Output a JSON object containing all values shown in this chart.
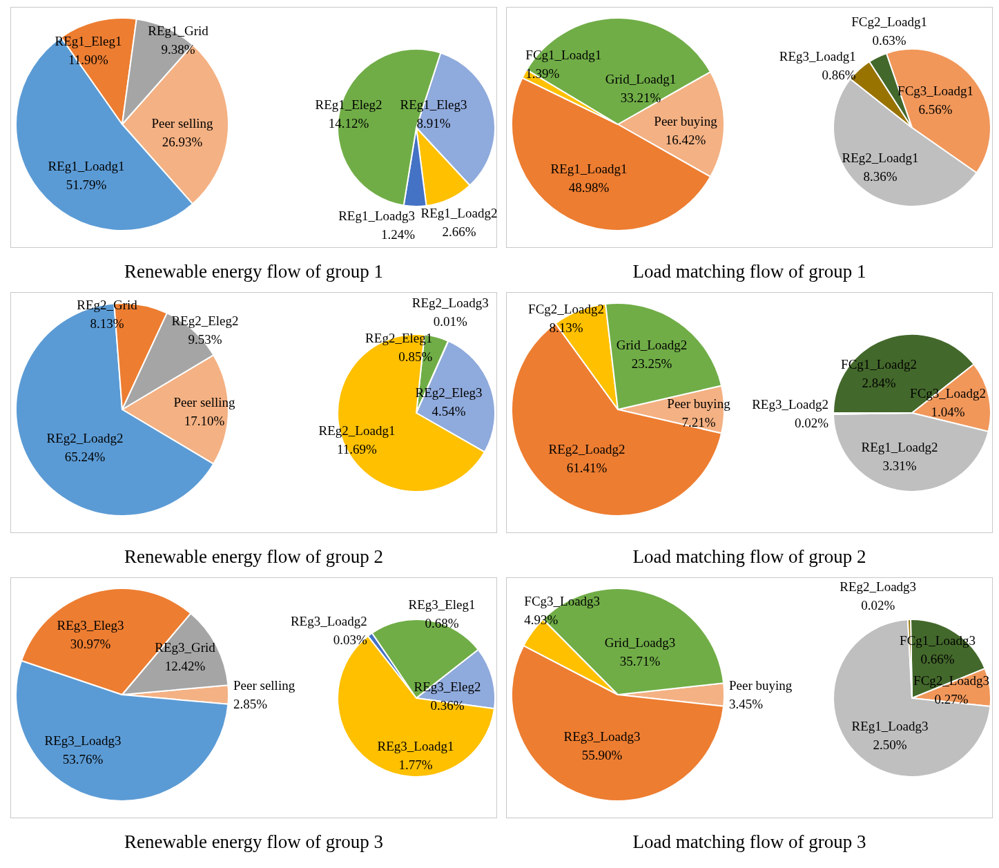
{
  "chart_data": [
    {
      "type": "pie",
      "title": "Renewable energy flow of group 1",
      "categories": [
        "Peer selling",
        "REg1_Loadg1",
        "REg1_Eleg1",
        "REg1_Grid"
      ],
      "values": [
        26.93,
        51.79,
        11.9,
        9.38
      ],
      "colors": [
        "#f4b183",
        "#5b9bd5",
        "#ed7d31",
        "#a5a5a5"
      ],
      "value_labels": [
        "26.93%",
        "51.79%",
        "11.90%",
        "9.38%"
      ]
    },
    {
      "type": "pie",
      "categories": [
        "REg1_Eleg3",
        "REg1_Loadg2",
        "REg1_Loadg3",
        "REg1_Eleg2"
      ],
      "values": [
        8.91,
        2.66,
        1.24,
        14.12
      ],
      "colors": [
        "#8faadc",
        "#ffc000",
        "#4472c4",
        "#70ad47"
      ],
      "value_labels": [
        "8.91%",
        "2.66%",
        "1.24%",
        "14.12%"
      ]
    },
    {
      "type": "pie",
      "title": "Load matching flow of group 1",
      "categories": [
        "Peer buying",
        "REg1_Loadg1",
        "FCg1_Loadg1",
        "Grid_Loadg1"
      ],
      "values": [
        16.42,
        48.98,
        1.39,
        33.21
      ],
      "colors": [
        "#f4b183",
        "#ed7d31",
        "#ffc000",
        "#70ad47"
      ],
      "value_labels": [
        "16.42%",
        "48.98%",
        "1.39%",
        "33.21%"
      ]
    },
    {
      "type": "pie",
      "categories": [
        "FCg3_Loadg1",
        "REg2_Loadg1",
        "REg3_Loadg1",
        "FCg2_Loadg1"
      ],
      "values": [
        6.56,
        8.36,
        0.86,
        0.63
      ],
      "colors": [
        "#f1975a",
        "#bfbfbf",
        "#997300",
        "#43682b"
      ],
      "value_labels": [
        "6.56%",
        "8.36%",
        "0.86%",
        "0.63%"
      ]
    },
    {
      "type": "pie",
      "title": "Renewable energy flow of group 2",
      "categories": [
        "Peer selling",
        "REg2_Loadg2",
        "REg2_Grid",
        "REg2_Eleg2"
      ],
      "values": [
        17.1,
        65.24,
        8.13,
        9.53
      ],
      "colors": [
        "#f4b183",
        "#5b9bd5",
        "#ed7d31",
        "#a5a5a5"
      ],
      "value_labels": [
        "17.10%",
        "65.24%",
        "8.13%",
        "9.53%"
      ]
    },
    {
      "type": "pie",
      "categories": [
        "REg2_Eleg1",
        "REg2_Loadg3",
        "REg2_Eleg3",
        "REg2_Loadg1"
      ],
      "values": [
        0.85,
        0.01,
        4.54,
        11.69
      ],
      "colors": [
        "#70ad47",
        "#4472c4",
        "#8faadc",
        "#ffc000"
      ],
      "value_labels": [
        "0.85%",
        "0.01%",
        "4.54%",
        "11.69%"
      ]
    },
    {
      "type": "pie",
      "title": "Load matching flow of group 2",
      "categories": [
        "Peer buying",
        "REg2_Loadg2",
        "FCg2_Loadg2",
        "Grid_Loadg2"
      ],
      "values": [
        7.21,
        61.41,
        8.13,
        23.25
      ],
      "colors": [
        "#f4b183",
        "#ed7d31",
        "#ffc000",
        "#70ad47"
      ],
      "value_labels": [
        "7.21%",
        "61.41%",
        "8.13%",
        "23.25%"
      ]
    },
    {
      "type": "pie",
      "categories": [
        "FCg1_Loadg2",
        "FCg3_Loadg2",
        "REg1_Loadg2",
        "REg3_Loadg2"
      ],
      "values": [
        2.84,
        1.04,
        3.31,
        0.02
      ],
      "colors": [
        "#43682b",
        "#f1975a",
        "#bfbfbf",
        "#997300"
      ],
      "value_labels": [
        "2.84%",
        "1.04%",
        "3.31%",
        "0.02%"
      ]
    },
    {
      "type": "pie",
      "title": "Renewable energy flow of group 3",
      "categories": [
        "Peer selling",
        "REg3_Loadg3",
        "REg3_Eleg3",
        "REg3_Grid"
      ],
      "values": [
        2.85,
        53.76,
        30.97,
        12.42
      ],
      "colors": [
        "#f4b183",
        "#5b9bd5",
        "#ed7d31",
        "#a5a5a5"
      ],
      "value_labels": [
        "2.85%",
        "53.76%",
        "30.97%",
        "12.42%"
      ]
    },
    {
      "type": "pie",
      "categories": [
        "REg3_Loadg2",
        "REg3_Eleg1",
        "REg3_Eleg2",
        "REg3_Loadg1"
      ],
      "values": [
        0.03,
        0.68,
        0.36,
        1.77
      ],
      "colors": [
        "#4472c4",
        "#70ad47",
        "#8faadc",
        "#ffc000"
      ],
      "value_labels": [
        "0.03%",
        "0.68%",
        "0.36%",
        "1.77%"
      ]
    },
    {
      "type": "pie",
      "title": "Load matching flow of group 3",
      "categories": [
        "Peer buying",
        "REg3_Loadg3",
        "FCg3_Loadg3",
        "Grid_Loadg3"
      ],
      "values": [
        3.45,
        55.9,
        4.93,
        35.71
      ],
      "colors": [
        "#f4b183",
        "#ed7d31",
        "#ffc000",
        "#70ad47"
      ],
      "value_labels": [
        "3.45%",
        "55.90%",
        "4.93%",
        "35.71%"
      ]
    },
    {
      "type": "pie",
      "categories": [
        "FCg1_Loadg3",
        "FCg2_Loadg3",
        "REg1_Loadg3",
        "REg2_Loadg3"
      ],
      "values": [
        0.66,
        0.27,
        2.5,
        0.02
      ],
      "colors": [
        "#43682b",
        "#f1975a",
        "#bfbfbf",
        "#997300"
      ],
      "value_labels": [
        "0.66%",
        "0.27%",
        "2.50%",
        "0.02%"
      ]
    }
  ]
}
